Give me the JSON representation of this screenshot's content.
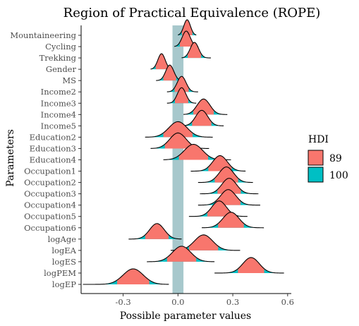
{
  "chart_data": {
    "type": "ridgeline",
    "title": "Region of Practical Equivalence (ROPE)",
    "xlabel": "Possible parameter values",
    "ylabel": "Parameters",
    "xlim": [
      -0.53,
      0.62
    ],
    "x_ticks": [
      -0.3,
      0.0,
      0.3,
      0.6
    ],
    "x_tick_labels": [
      "-0.3",
      "0.0",
      "0.3",
      "0.6"
    ],
    "rope": [
      -0.03,
      0.03
    ],
    "legend": {
      "title": "HDI",
      "placement": "right",
      "items": [
        {
          "label": "89",
          "color": "#F8766D"
        },
        {
          "label": "100",
          "color": "#00BFC4"
        }
      ]
    },
    "rope_color": "#a7c8cc",
    "parameters": [
      {
        "name": "Mountaineering",
        "mean": 0.05,
        "sd": 0.018,
        "min": 0.0,
        "max": 0.1
      },
      {
        "name": "Cycling",
        "mean": 0.045,
        "sd": 0.022,
        "min": -0.02,
        "max": 0.11
      },
      {
        "name": "Trekking",
        "mean": 0.09,
        "sd": 0.023,
        "min": 0.02,
        "max": 0.18
      },
      {
        "name": "Gender",
        "mean": -0.09,
        "sd": 0.02,
        "min": -0.15,
        "max": -0.03
      },
      {
        "name": "MS",
        "mean": -0.045,
        "sd": 0.022,
        "min": -0.12,
        "max": 0.02
      },
      {
        "name": "Income2",
        "mean": 0.02,
        "sd": 0.024,
        "min": -0.06,
        "max": 0.11
      },
      {
        "name": "Income3",
        "mean": 0.02,
        "sd": 0.023,
        "min": -0.06,
        "max": 0.1
      },
      {
        "name": "Income4",
        "mean": 0.14,
        "sd": 0.035,
        "min": 0.03,
        "max": 0.27
      },
      {
        "name": "Income5",
        "mean": 0.13,
        "sd": 0.033,
        "min": 0.02,
        "max": 0.25
      },
      {
        "name": "Education2",
        "mean": 0.0,
        "sd": 0.05,
        "min": -0.18,
        "max": 0.19
      },
      {
        "name": "Education3",
        "mean": 0.0,
        "sd": 0.045,
        "min": -0.15,
        "max": 0.17
      },
      {
        "name": "Education4",
        "mean": 0.085,
        "sd": 0.05,
        "min": -0.08,
        "max": 0.29
      },
      {
        "name": "Occupation1",
        "mean": 0.23,
        "sd": 0.04,
        "min": 0.07,
        "max": 0.37
      },
      {
        "name": "Occupation2",
        "mean": 0.265,
        "sd": 0.04,
        "min": 0.11,
        "max": 0.41
      },
      {
        "name": "Occupation3",
        "mean": 0.28,
        "sd": 0.04,
        "min": 0.12,
        "max": 0.44
      },
      {
        "name": "Occupation4",
        "mean": 0.275,
        "sd": 0.042,
        "min": 0.11,
        "max": 0.45
      },
      {
        "name": "Occupation5",
        "mean": 0.225,
        "sd": 0.04,
        "min": 0.06,
        "max": 0.38
      },
      {
        "name": "Occupation6",
        "mean": 0.29,
        "sd": 0.044,
        "min": 0.13,
        "max": 0.47
      },
      {
        "name": "logAge",
        "mean": -0.115,
        "sd": 0.04,
        "min": -0.27,
        "max": 0.02
      },
      {
        "name": "logEA",
        "mean": 0.14,
        "sd": 0.05,
        "min": -0.04,
        "max": 0.34
      },
      {
        "name": "logES",
        "mean": 0.02,
        "sd": 0.05,
        "min": -0.17,
        "max": 0.2
      },
      {
        "name": "logPEM",
        "mean": 0.4,
        "sd": 0.045,
        "min": 0.2,
        "max": 0.58
      },
      {
        "name": "logEP",
        "mean": -0.245,
        "sd": 0.055,
        "min": -0.52,
        "max": -0.05
      }
    ]
  }
}
